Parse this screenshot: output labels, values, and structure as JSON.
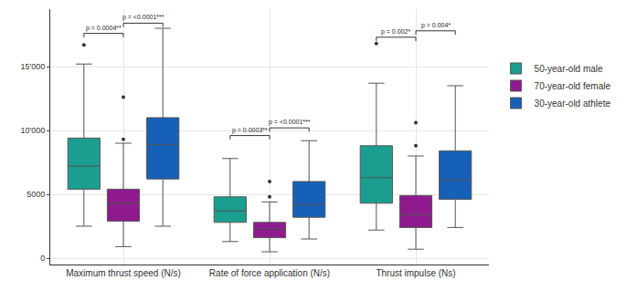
{
  "chart_data": {
    "type": "box",
    "categories": [
      "Maximum thrust speed (N/s)",
      "Rate of force application (N/s)",
      "Thrust impulse (Ns)"
    ],
    "series": [
      {
        "name": "50-year-old male",
        "color": "#1a9e8f",
        "stats": [
          {
            "lower": 2500,
            "q1": 5400,
            "median": 7200,
            "q3": 9400,
            "upper": 15200,
            "outliers": [
              16700
            ]
          },
          {
            "lower": 1300,
            "q1": 2800,
            "median": 3700,
            "q3": 4800,
            "upper": 7800,
            "outliers": []
          },
          {
            "lower": 2200,
            "q1": 4300,
            "median": 6300,
            "q3": 8800,
            "upper": 13700,
            "outliers": [
              16800
            ]
          }
        ]
      },
      {
        "name": "70-year-old female",
        "color": "#8e1a8e",
        "stats": [
          {
            "lower": 900,
            "q1": 2900,
            "median": 4300,
            "q3": 5400,
            "upper": 9000,
            "outliers": [
              9300,
              12600
            ]
          },
          {
            "lower": 500,
            "q1": 1600,
            "median": 2300,
            "q3": 2800,
            "upper": 4400,
            "outliers": [
              4800,
              6000
            ]
          },
          {
            "lower": 700,
            "q1": 2400,
            "median": 3400,
            "q3": 4900,
            "upper": 8000,
            "outliers": [
              8800,
              10600
            ]
          }
        ]
      },
      {
        "name": "30-year-old athlete",
        "color": "#1760b8",
        "stats": [
          {
            "lower": 2500,
            "q1": 6200,
            "median": 8900,
            "q3": 11000,
            "upper": 18000,
            "outliers": []
          },
          {
            "lower": 1500,
            "q1": 3200,
            "median": 4200,
            "q3": 6000,
            "upper": 9200,
            "outliers": []
          },
          {
            "lower": 2400,
            "q1": 4600,
            "median": 6100,
            "q3": 8400,
            "upper": 13500,
            "outliers": []
          }
        ]
      }
    ],
    "comparisons": [
      {
        "category": 0,
        "groups": [
          0,
          1
        ],
        "y": 17600,
        "label": "p = 0.0004**"
      },
      {
        "category": 0,
        "groups": [
          1,
          2
        ],
        "y": 18400,
        "label": "p = <0.0001***"
      },
      {
        "category": 1,
        "groups": [
          0,
          1
        ],
        "y": 9600,
        "label": "p = 0.0003**"
      },
      {
        "category": 1,
        "groups": [
          1,
          2
        ],
        "y": 10200,
        "label": "p = <0.0001***"
      },
      {
        "category": 2,
        "groups": [
          0,
          1
        ],
        "y": 17300,
        "label": "p = 0.002*"
      },
      {
        "category": 2,
        "groups": [
          1,
          2
        ],
        "y": 17800,
        "label": "p = 0.004*"
      }
    ],
    "ylim": [
      -500,
      19500
    ],
    "yticks": [
      0,
      5000,
      {
        "value": 10000,
        "label": "10'000"
      },
      {
        "value": 15000,
        "label": "15'000"
      }
    ],
    "grid": true,
    "legend": "right"
  }
}
